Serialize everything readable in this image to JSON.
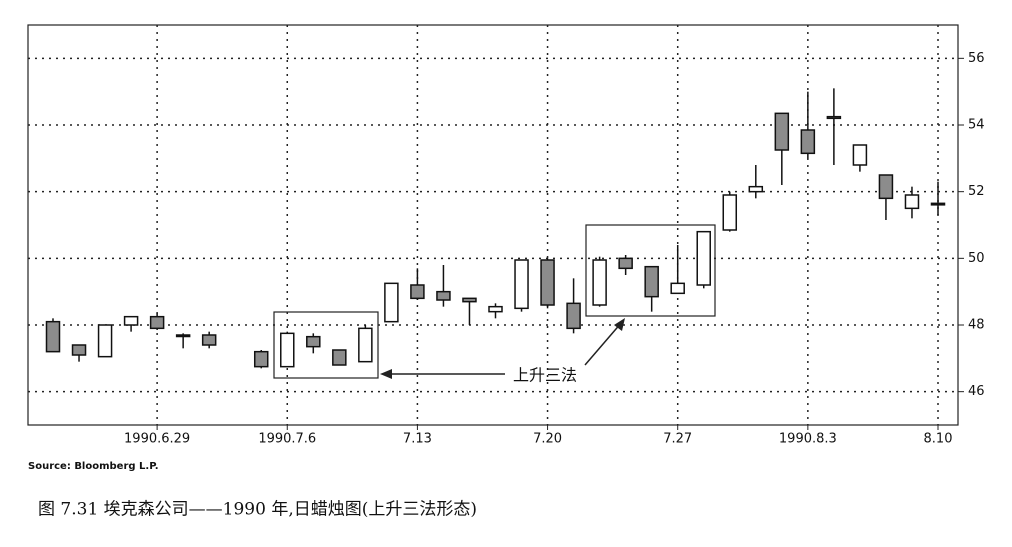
{
  "chart_data": {
    "type": "candlestick",
    "categories": [
      null,
      null,
      null,
      null,
      "1990.6.29",
      null,
      null,
      null,
      null,
      "1990.7.6",
      null,
      null,
      null,
      null,
      "7.13",
      null,
      null,
      null,
      null,
      "7.20",
      null,
      null,
      null,
      null,
      "7.27",
      null,
      null,
      null,
      null,
      "1990.8.3",
      null,
      null,
      null,
      null,
      "8.10"
    ],
    "open": [
      48.1,
      47.4,
      47.05,
      48.0,
      48.25,
      47.7,
      47.7,
      null,
      47.2,
      46.75,
      47.65,
      47.25,
      46.9,
      48.1,
      49.2,
      49.0,
      48.8,
      48.4,
      48.5,
      49.95,
      48.65,
      48.6,
      50.0,
      49.75,
      48.95,
      49.2,
      50.85,
      52.0,
      54.35,
      53.85,
      54.25,
      52.8,
      52.5,
      51.5,
      51.65
    ],
    "high": [
      48.2,
      47.4,
      48.0,
      48.25,
      48.35,
      47.75,
      47.8,
      null,
      47.25,
      47.8,
      47.75,
      47.25,
      48.0,
      49.25,
      49.7,
      49.8,
      48.8,
      48.65,
      49.95,
      50.0,
      49.4,
      50.05,
      50.1,
      49.75,
      50.4,
      50.8,
      52.0,
      52.8,
      54.35,
      55.0,
      55.1,
      53.4,
      52.5,
      52.15,
      52.3
    ],
    "low": [
      47.2,
      46.9,
      47.05,
      47.8,
      47.85,
      47.3,
      47.3,
      null,
      46.7,
      46.75,
      47.15,
      46.8,
      46.9,
      48.1,
      48.75,
      48.55,
      48.0,
      48.2,
      48.4,
      48.5,
      47.75,
      48.55,
      49.5,
      48.4,
      48.95,
      49.1,
      50.8,
      51.8,
      52.2,
      53.0,
      52.8,
      52.6,
      51.15,
      51.2,
      51.3
    ],
    "close": [
      47.2,
      47.1,
      48.0,
      48.25,
      47.9,
      47.7,
      47.4,
      null,
      46.75,
      47.75,
      47.35,
      46.8,
      47.9,
      49.25,
      48.8,
      48.75,
      48.7,
      48.55,
      49.95,
      48.6,
      47.9,
      49.95,
      49.7,
      48.85,
      49.25,
      50.8,
      51.9,
      52.15,
      53.25,
      53.15,
      54.2,
      53.4,
      51.8,
      51.9,
      51.65
    ],
    "up_color": "#ffffff",
    "down_color": "#8c8c8c",
    "ylim": [
      45,
      57
    ],
    "yticks": [
      46,
      48,
      50,
      52,
      54,
      56
    ],
    "grid": true,
    "annotation": "上升三法",
    "source": "Source: Bloomberg L.P.",
    "caption": "图 7.31   埃克森公司——1990 年,日蜡烛图(上升三法形态)"
  }
}
